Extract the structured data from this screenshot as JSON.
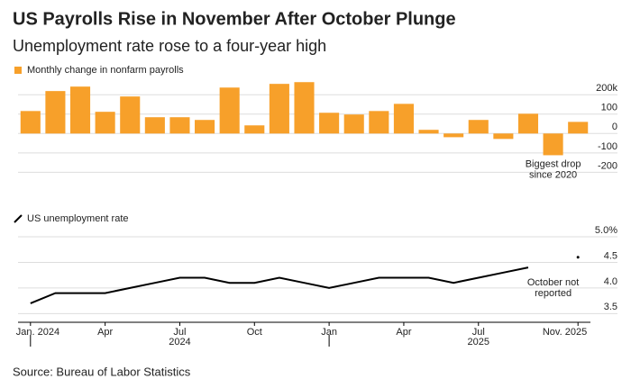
{
  "title": "US Payrolls Rise in November After October Plunge",
  "subtitle": "Unemployment rate rose to a four-year high",
  "source": "Source: Bureau of Labor Statistics",
  "chart_data": [
    {
      "type": "bar",
      "series": [
        {
          "name": "Monthly change in nonfarm payrolls",
          "color": "#f7a02a",
          "values": [
            116,
            219,
            242,
            112,
            191,
            84,
            84,
            70,
            237,
            42,
            256,
            265,
            107,
            98,
            116,
            153,
            19,
            -19,
            70,
            -28,
            102,
            -112,
            60
          ]
        }
      ],
      "ylim": [
        -240,
        280
      ],
      "yticks": [
        {
          "value": 200,
          "label": "200k"
        },
        100,
        0,
        -100,
        -200
      ],
      "grid": true,
      "annotation": [
        "Biggest drop",
        "since 2020"
      ]
    },
    {
      "type": "line",
      "categories": [
        "Jan. 2024",
        null,
        null,
        "Apr",
        null,
        null,
        "Jul",
        null,
        null,
        "Oct",
        null,
        null,
        "Jan",
        null,
        null,
        "Apr",
        null,
        null,
        "Jul",
        null,
        null,
        null,
        "Nov. 2025"
      ],
      "year_labels": [
        "2024",
        "2025"
      ],
      "series": [
        {
          "name": "US unemployment rate",
          "color": "#000000",
          "values": [
            3.7,
            3.9,
            3.9,
            3.9,
            4.0,
            4.1,
            4.2,
            4.2,
            4.1,
            4.1,
            4.2,
            4.1,
            4.0,
            4.1,
            4.2,
            4.2,
            4.2,
            4.1,
            4.2,
            4.3,
            4.4,
            null,
            4.6
          ]
        }
      ],
      "ylim": [
        3.4,
        5.0
      ],
      "yticks": [
        3.5,
        {
          "value": 4,
          "label": "4.0"
        },
        4.5,
        {
          "value": 5,
          "label": "5.0%"
        }
      ],
      "grid": true,
      "annotation": [
        "October not",
        "reported"
      ]
    }
  ]
}
